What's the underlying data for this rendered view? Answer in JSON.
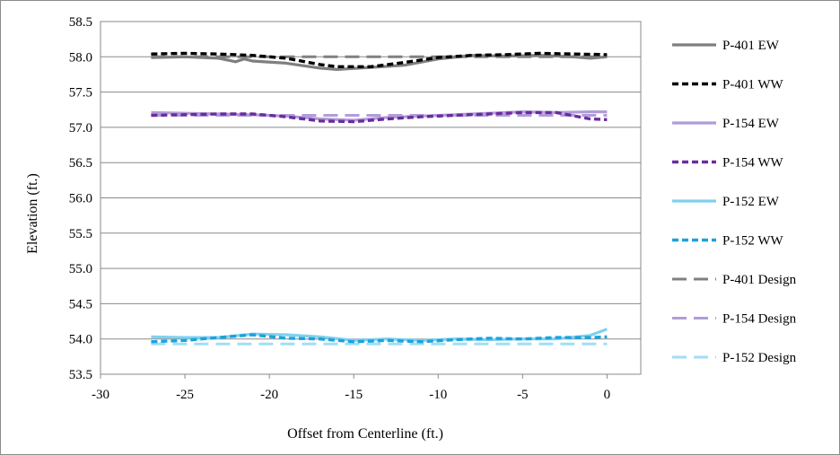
{
  "chart_data": {
    "type": "line",
    "title": "",
    "xlabel": "Offset from Centerline (ft.)",
    "ylabel": "Elevation (ft.)",
    "xlim": [
      -30,
      2
    ],
    "ylim": [
      53.5,
      58.5
    ],
    "xticks": [
      -30,
      -25,
      -20,
      -15,
      -10,
      -5,
      0
    ],
    "yticks": [
      53.5,
      54.0,
      54.5,
      55.0,
      55.5,
      56.0,
      56.5,
      57.0,
      57.5,
      58.0,
      58.5
    ],
    "xtick_labels": [
      "-30",
      "-25",
      "-20",
      "-15",
      "-10",
      "-5",
      "0"
    ],
    "ytick_labels": [
      "53.5",
      "54.0",
      "54.5",
      "55.0",
      "55.5",
      "56.0",
      "56.5",
      "57.0",
      "57.5",
      "58.0",
      "58.5"
    ],
    "grid": "horizontal",
    "legend": "right",
    "series": [
      {
        "name": "P-401 EW",
        "color": "#7f7f7f",
        "dash": "solid",
        "x": [
          -27,
          -25,
          -23,
          -22,
          -21.5,
          -21,
          -19,
          -17,
          -16,
          -14,
          -12,
          -10,
          -8,
          -6,
          -4,
          -2,
          -1,
          0
        ],
        "y": [
          57.99,
          58.0,
          57.98,
          57.93,
          57.97,
          57.94,
          57.91,
          57.84,
          57.82,
          57.85,
          57.88,
          57.97,
          58.02,
          58.01,
          58.02,
          58.0,
          57.98,
          58.0
        ]
      },
      {
        "name": "P-401 WW",
        "color": "#000000",
        "dash": "dashed",
        "x": [
          -27,
          -25,
          -23,
          -21,
          -19,
          -17,
          -16,
          -14,
          -12,
          -10,
          -8,
          -6,
          -4,
          -2,
          0
        ],
        "y": [
          58.04,
          58.05,
          58.04,
          58.02,
          57.98,
          57.89,
          57.86,
          57.86,
          57.92,
          57.99,
          58.02,
          58.03,
          58.05,
          58.04,
          58.03
        ]
      },
      {
        "name": "P-154 EW",
        "color": "#b19cd9",
        "dash": "solid",
        "x": [
          -27,
          -25,
          -23,
          -21,
          -19,
          -17,
          -15,
          -13,
          -11,
          -9,
          -7,
          -5,
          -3,
          -1,
          0
        ],
        "y": [
          57.21,
          57.2,
          57.19,
          57.18,
          57.16,
          57.12,
          57.1,
          57.14,
          57.16,
          57.18,
          57.2,
          57.22,
          57.21,
          57.22,
          57.22
        ]
      },
      {
        "name": "P-154 WW",
        "color": "#6a2c9e",
        "dash": "dashed",
        "x": [
          -27,
          -25,
          -23,
          -21,
          -19,
          -17,
          -15,
          -13,
          -11,
          -9,
          -7,
          -5,
          -3,
          -1,
          0
        ],
        "y": [
          57.17,
          57.18,
          57.19,
          57.19,
          57.15,
          57.09,
          57.08,
          57.12,
          57.15,
          57.17,
          57.19,
          57.21,
          57.21,
          57.12,
          57.11
        ]
      },
      {
        "name": "P-152 EW",
        "color": "#7fd1ef",
        "dash": "solid",
        "x": [
          -27,
          -25,
          -23,
          -21,
          -19,
          -17,
          -15,
          -13,
          -11,
          -9,
          -7,
          -5,
          -3,
          -1,
          0
        ],
        "y": [
          54.03,
          54.02,
          54.02,
          54.07,
          54.06,
          54.03,
          53.98,
          54.0,
          53.98,
          54.0,
          53.99,
          54.0,
          54.0,
          54.05,
          54.14
        ]
      },
      {
        "name": "P-152 WW",
        "color": "#1ba3dd",
        "dash": "dashed",
        "x": [
          -27,
          -25,
          -23,
          -21,
          -19,
          -17,
          -15,
          -13,
          -11,
          -9,
          -7,
          -5,
          -3,
          -1,
          0
        ],
        "y": [
          53.96,
          53.98,
          54.02,
          54.06,
          54.01,
          54.0,
          53.96,
          53.98,
          53.96,
          53.99,
          54.01,
          54.0,
          54.02,
          54.02,
          54.03
        ]
      },
      {
        "name": "P-401 Design",
        "color": "#808080",
        "dash": "longdash",
        "x": [
          -27,
          0
        ],
        "y": [
          58.0,
          58.0
        ]
      },
      {
        "name": "P-154 Design",
        "color": "#b19cd9",
        "dash": "longdash",
        "x": [
          -27,
          0
        ],
        "y": [
          57.17,
          57.17
        ]
      },
      {
        "name": "P-152 Design",
        "color": "#9fdff5",
        "dash": "longdash",
        "x": [
          -27,
          0
        ],
        "y": [
          53.93,
          53.93
        ]
      }
    ]
  }
}
